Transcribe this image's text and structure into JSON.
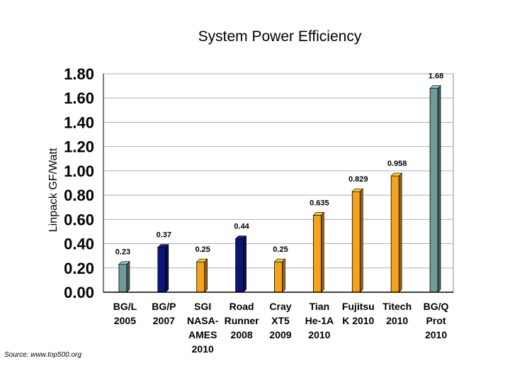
{
  "chart_data": {
    "type": "bar",
    "title": "System Power Efficiency",
    "ylabel": "Linpack GF/Watt",
    "xlabel": "",
    "ylim": [
      0,
      1.8
    ],
    "yticks": [
      "0.00",
      "0.20",
      "0.40",
      "0.60",
      "0.80",
      "1.00",
      "1.20",
      "1.40",
      "1.60",
      "1.80"
    ],
    "grid": true,
    "categories": [
      [
        "BG/L",
        "2005"
      ],
      [
        "BG/P",
        "2007"
      ],
      [
        "SGI",
        "NASA-",
        "AMES",
        "2010"
      ],
      [
        "Road",
        "Runner",
        "2008"
      ],
      [
        "Cray",
        "XT5",
        "2009"
      ],
      [
        "Tian",
        "He-1A",
        "2010"
      ],
      [
        "Fujitsu",
        "K 2010"
      ],
      [
        "Titech",
        "2010"
      ],
      [
        "BG/Q",
        "Prot",
        "2010"
      ]
    ],
    "values": [
      0.23,
      0.37,
      0.25,
      0.44,
      0.25,
      0.635,
      0.829,
      0.958,
      1.68
    ],
    "value_labels": [
      "0.23",
      "0.37",
      "0.25",
      "0.44",
      "0.25",
      "0.635",
      "0.829",
      "0.958",
      "1.68"
    ],
    "bar_colors": [
      "#6f9a99",
      "#0b1577",
      "#f5a21d",
      "#0b1577",
      "#f5a21d",
      "#f5a21d",
      "#f5a21d",
      "#f5a21d",
      "#6f9a99"
    ]
  },
  "source": "Source:  www.top500.org"
}
